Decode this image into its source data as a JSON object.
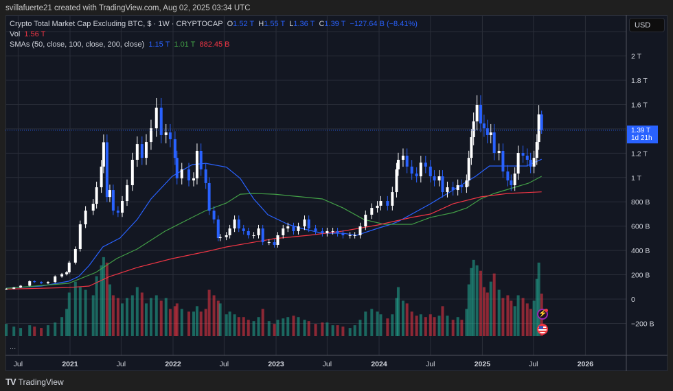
{
  "attribution": "svillafuerte21 created with TradingView.com, Aug 02, 2025 03:34 UTC",
  "legend": {
    "symbol": "Crypto Total Market Cap Excluding BTC, $ · 1W · CRYPTOCAP",
    "o_label": "O",
    "o": "1.52 T",
    "h_label": "H",
    "h": "1.55 T",
    "l_label": "L",
    "l": "1.36 T",
    "c_label": "C",
    "c": "1.39 T",
    "change": "−127.64 B (−8.41%)",
    "vol_label": "Vol",
    "vol": "1.56 T",
    "sma_label": "SMAs (50, close, 100, close, 200, close)",
    "sma50": "1.15 T",
    "sma100": "1.01 T",
    "sma200": "882.45 B"
  },
  "currency_button": "USD",
  "last_price": {
    "value": "1.39 T",
    "countdown": "1d 21h"
  },
  "more_label": "...",
  "footer": {
    "logo": "TV",
    "brand": "TradingView"
  },
  "icons": {
    "event_1": "lightning-icon",
    "event_2": "us-flag-icon"
  },
  "colors": {
    "up": "#ffffff",
    "down": "#2962ff",
    "vol_up": "#22ab94",
    "vol_down": "#f23645",
    "sma50": "#2962ff",
    "sma100": "#43a047",
    "sma200": "#f23645",
    "background": "#131722",
    "grid": "#2a2e39"
  },
  "chart_data": {
    "type": "candlestick",
    "interval": "1W",
    "unit": "B USD",
    "ylim": [
      -260,
      2250
    ],
    "grid": true,
    "y_ticks": [
      {
        "value": 2000,
        "label": "2 T"
      },
      {
        "value": 1800,
        "label": "1.8 T"
      },
      {
        "value": 1600,
        "label": "1.6 T"
      },
      {
        "value": 1200,
        "label": "1.2 T"
      },
      {
        "value": 1000,
        "label": "1 T"
      },
      {
        "value": 800,
        "label": "800 B"
      },
      {
        "value": 600,
        "label": "600 B"
      },
      {
        "value": 400,
        "label": "400 B"
      },
      {
        "value": 200,
        "label": "200 B"
      },
      {
        "value": 0,
        "label": "0"
      },
      {
        "value": -200,
        "label": "−200 B"
      }
    ],
    "x_ticks": [
      {
        "date": "2020-07-01",
        "label": "Jul"
      },
      {
        "date": "2021-01-01",
        "label": "2021"
      },
      {
        "date": "2021-07-01",
        "label": "Jul"
      },
      {
        "date": "2022-01-01",
        "label": "2022"
      },
      {
        "date": "2022-07-01",
        "label": "Jul"
      },
      {
        "date": "2023-01-01",
        "label": "2023"
      },
      {
        "date": "2023-07-01",
        "label": "Jul"
      },
      {
        "date": "2024-01-01",
        "label": "2024"
      },
      {
        "date": "2024-07-01",
        "label": "Jul"
      },
      {
        "date": "2025-01-01",
        "label": "2025"
      },
      {
        "date": "2025-07-01",
        "label": "Jul"
      },
      {
        "date": "2026-01-01",
        "label": "2026"
      }
    ],
    "last_candle": {
      "open": 1520,
      "high": 1550,
      "low": 1360,
      "close": 1390
    },
    "candles_date_close_volumeT": [
      [
        "2020-05-20",
        85,
        0.45
      ],
      [
        "2020-06-16",
        95,
        0.35
      ],
      [
        "2020-07-10",
        110,
        0.3
      ],
      [
        "2020-08-11",
        147,
        0.4
      ],
      [
        "2020-08-28",
        140,
        0.35
      ],
      [
        "2020-09-21",
        130,
        0.3
      ],
      [
        "2020-10-15",
        140,
        0.4
      ],
      [
        "2020-11-09",
        186,
        0.5
      ],
      [
        "2020-12-03",
        205,
        0.7
      ],
      [
        "2020-12-20",
        220,
        1.0
      ],
      [
        "2020-12-29",
        300,
        1.6
      ],
      [
        "2021-01-20",
        412,
        2.0
      ],
      [
        "2021-02-06",
        615,
        1.8
      ],
      [
        "2021-02-25",
        728,
        1.7
      ],
      [
        "2021-03-24",
        784,
        1.5
      ],
      [
        "2021-04-05",
        920,
        2.2
      ],
      [
        "2021-04-22",
        1090,
        2.6
      ],
      [
        "2021-04-30",
        1290,
        2.9
      ],
      [
        "2021-05-12",
        840,
        2.7
      ],
      [
        "2021-05-22",
        897,
        1.9
      ],
      [
        "2021-06-03",
        728,
        1.5
      ],
      [
        "2021-06-20",
        711,
        1.4
      ],
      [
        "2021-07-05",
        807,
        1.2
      ],
      [
        "2021-07-22",
        937,
        1.4
      ],
      [
        "2021-08-10",
        1146,
        1.5
      ],
      [
        "2021-08-27",
        1275,
        1.8
      ],
      [
        "2021-09-13",
        1162,
        1.6
      ],
      [
        "2021-09-28",
        1292,
        1.2
      ],
      [
        "2021-10-15",
        1405,
        1.4
      ],
      [
        "2021-11-03",
        1575,
        1.5
      ],
      [
        "2021-11-20",
        1349,
        1.3
      ],
      [
        "2021-12-07",
        1371,
        1.4
      ],
      [
        "2021-12-22",
        1315,
        1.0
      ],
      [
        "2022-01-08",
        1162,
        1.1
      ],
      [
        "2022-01-15",
        993,
        1.2
      ],
      [
        "2022-02-01",
        1067,
        1.0
      ],
      [
        "2022-02-26",
        976,
        0.9
      ],
      [
        "2022-03-15",
        993,
        0.9
      ],
      [
        "2022-03-27",
        1219,
        1.1
      ],
      [
        "2022-04-10",
        1067,
        0.9
      ],
      [
        "2022-04-27",
        954,
        1.0
      ],
      [
        "2022-05-09",
        728,
        1.7
      ],
      [
        "2022-05-26",
        655,
        1.5
      ],
      [
        "2022-06-10",
        502,
        1.3
      ],
      [
        "2022-06-17",
        510,
        1.2
      ],
      [
        "2022-07-09",
        525,
        0.8
      ],
      [
        "2022-07-21",
        581,
        0.9
      ],
      [
        "2022-08-07",
        655,
        0.8
      ],
      [
        "2022-08-22",
        581,
        0.7
      ],
      [
        "2022-09-08",
        559,
        0.7
      ],
      [
        "2022-09-25",
        525,
        0.6
      ],
      [
        "2022-10-14",
        525,
        0.55
      ],
      [
        "2022-10-31",
        581,
        0.7
      ],
      [
        "2022-11-15",
        468,
        1.0
      ],
      [
        "2022-12-07",
        468,
        0.55
      ],
      [
        "2022-12-26",
        446,
        0.45
      ],
      [
        "2023-01-07",
        525,
        0.6
      ],
      [
        "2023-01-26",
        581,
        0.65
      ],
      [
        "2023-02-12",
        598,
        0.7
      ],
      [
        "2023-03-04",
        559,
        0.75
      ],
      [
        "2023-03-21",
        598,
        0.7
      ],
      [
        "2023-04-12",
        655,
        0.6
      ],
      [
        "2023-04-27",
        581,
        0.55
      ],
      [
        "2023-05-21",
        559,
        0.45
      ],
      [
        "2023-06-14",
        542,
        0.5
      ],
      [
        "2023-07-01",
        559,
        0.5
      ],
      [
        "2023-07-21",
        559,
        0.4
      ],
      [
        "2023-08-07",
        542,
        0.4
      ],
      [
        "2023-08-26",
        525,
        0.35
      ],
      [
        "2023-09-20",
        525,
        0.3
      ],
      [
        "2023-10-07",
        525,
        0.4
      ],
      [
        "2023-10-26",
        598,
        0.6
      ],
      [
        "2023-11-14",
        694,
        0.9
      ],
      [
        "2023-12-06",
        750,
        1.0
      ],
      [
        "2023-12-26",
        768,
        0.9
      ],
      [
        "2024-01-07",
        807,
        0.8
      ],
      [
        "2024-01-31",
        768,
        0.65
      ],
      [
        "2024-02-17",
        880,
        0.8
      ],
      [
        "2024-03-03",
        1067,
        1.4
      ],
      [
        "2024-03-09",
        1146,
        1.8
      ],
      [
        "2024-03-26",
        1180,
        1.3
      ],
      [
        "2024-04-09",
        1090,
        1.2
      ],
      [
        "2024-04-26",
        1033,
        0.9
      ],
      [
        "2024-05-13",
        1010,
        0.75
      ],
      [
        "2024-05-28",
        1123,
        0.8
      ],
      [
        "2024-06-14",
        1090,
        0.7
      ],
      [
        "2024-07-01",
        1010,
        0.8
      ],
      [
        "2024-07-15",
        976,
        0.7
      ],
      [
        "2024-08-01",
        1010,
        0.75
      ],
      [
        "2024-08-13",
        880,
        1.1
      ],
      [
        "2024-08-30",
        920,
        0.75
      ],
      [
        "2024-09-19",
        897,
        0.6
      ],
      [
        "2024-10-06",
        937,
        0.7
      ],
      [
        "2024-10-20",
        920,
        0.6
      ],
      [
        "2024-11-06",
        976,
        1.0
      ],
      [
        "2024-11-14",
        1162,
        1.9
      ],
      [
        "2024-11-23",
        1332,
        2.5
      ],
      [
        "2024-12-01",
        1462,
        2.8
      ],
      [
        "2024-12-13",
        1597,
        2.6
      ],
      [
        "2024-12-26",
        1445,
        2.4
      ],
      [
        "2025-01-07",
        1405,
        1.8
      ],
      [
        "2025-01-19",
        1349,
        1.6
      ],
      [
        "2025-01-31",
        1371,
        2.0
      ],
      [
        "2025-02-12",
        1202,
        2.3
      ],
      [
        "2025-03-01",
        1219,
        1.7
      ],
      [
        "2025-03-15",
        1050,
        1.4
      ],
      [
        "2025-04-01",
        976,
        1.5
      ],
      [
        "2025-04-13",
        937,
        1.3
      ],
      [
        "2025-04-26",
        1033,
        1.1
      ],
      [
        "2025-05-08",
        1202,
        1.5
      ],
      [
        "2025-05-25",
        1180,
        1.4
      ],
      [
        "2025-06-09",
        1146,
        1.2
      ],
      [
        "2025-06-21",
        1090,
        1.0
      ],
      [
        "2025-07-03",
        1162,
        1.3
      ],
      [
        "2025-07-13",
        1292,
        2.1
      ],
      [
        "2025-07-20",
        1520,
        2.7
      ],
      [
        "2025-07-30",
        1390,
        1.56
      ]
    ],
    "series": [
      {
        "name": "SMA 50",
        "points": [
          [
            "2020-05-20",
            90
          ],
          [
            "2020-09-21",
            107
          ],
          [
            "2020-12-27",
            147
          ],
          [
            "2021-02-01",
            186
          ],
          [
            "2021-03-10",
            277
          ],
          [
            "2021-04-27",
            429
          ],
          [
            "2021-06-27",
            502
          ],
          [
            "2021-08-27",
            655
          ],
          [
            "2021-10-15",
            824
          ],
          [
            "2021-12-29",
            1010
          ],
          [
            "2022-03-10",
            1106
          ],
          [
            "2022-04-27",
            1117
          ],
          [
            "2022-07-09",
            1085
          ],
          [
            "2022-08-27",
            993
          ],
          [
            "2022-10-14",
            824
          ],
          [
            "2022-12-03",
            694
          ],
          [
            "2023-02-12",
            615
          ],
          [
            "2023-04-01",
            581
          ],
          [
            "2023-06-14",
            542
          ],
          [
            "2023-08-26",
            542
          ],
          [
            "2023-10-14",
            525
          ],
          [
            "2023-12-26",
            581
          ],
          [
            "2024-02-12",
            615
          ],
          [
            "2024-03-09",
            638
          ],
          [
            "2024-07-01",
            784
          ],
          [
            "2024-09-19",
            897
          ],
          [
            "2024-12-08",
            1010
          ],
          [
            "2025-01-26",
            1095
          ],
          [
            "2025-03-24",
            1095
          ],
          [
            "2025-06-06",
            1095
          ],
          [
            "2025-07-30",
            1150
          ]
        ]
      },
      {
        "name": "SMA 100",
        "points": [
          [
            "2020-05-20",
            88
          ],
          [
            "2020-12-27",
            130
          ],
          [
            "2021-04-03",
            220
          ],
          [
            "2021-06-15",
            333
          ],
          [
            "2021-08-27",
            412
          ],
          [
            "2021-12-04",
            559
          ],
          [
            "2022-03-10",
            672
          ],
          [
            "2022-04-27",
            728
          ],
          [
            "2022-07-09",
            790
          ],
          [
            "2022-08-27",
            863
          ],
          [
            "2022-10-14",
            869
          ],
          [
            "2022-12-26",
            863
          ],
          [
            "2023-04-01",
            841
          ],
          [
            "2023-06-14",
            824
          ],
          [
            "2023-08-26",
            750
          ],
          [
            "2023-11-08",
            655
          ],
          [
            "2024-01-19",
            615
          ],
          [
            "2024-04-26",
            615
          ],
          [
            "2024-07-01",
            672
          ],
          [
            "2024-09-19",
            711
          ],
          [
            "2024-11-07",
            750
          ],
          [
            "2024-12-26",
            824
          ],
          [
            "2025-02-12",
            869
          ],
          [
            "2025-04-26",
            920
          ],
          [
            "2025-06-14",
            954
          ],
          [
            "2025-07-30",
            1010
          ]
        ]
      },
      {
        "name": "SMA 200",
        "points": [
          [
            "2020-05-20",
            82
          ],
          [
            "2020-12-27",
            95
          ],
          [
            "2021-03-10",
            107
          ],
          [
            "2021-05-22",
            186
          ],
          [
            "2021-08-27",
            260
          ],
          [
            "2021-12-29",
            333
          ],
          [
            "2022-04-27",
            390
          ],
          [
            "2022-07-09",
            429
          ],
          [
            "2022-12-26",
            497
          ],
          [
            "2023-04-27",
            525
          ],
          [
            "2023-08-26",
            559
          ],
          [
            "2023-12-26",
            609
          ],
          [
            "2024-04-26",
            672
          ],
          [
            "2024-07-01",
            700
          ],
          [
            "2024-09-19",
            784
          ],
          [
            "2024-12-26",
            841
          ],
          [
            "2025-04-01",
            869
          ],
          [
            "2025-07-30",
            882
          ]
        ]
      }
    ]
  }
}
